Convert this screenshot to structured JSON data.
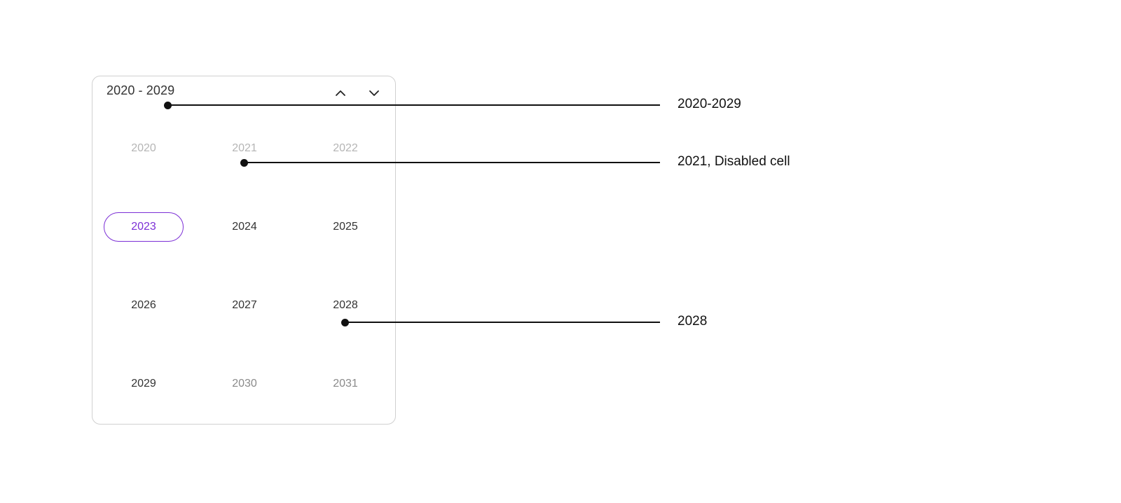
{
  "picker": {
    "range_label": "2020 - 2029",
    "years": [
      {
        "label": "2020",
        "state": "disabled"
      },
      {
        "label": "2021",
        "state": "disabled"
      },
      {
        "label": "2022",
        "state": "disabled"
      },
      {
        "label": "2023",
        "state": "selected"
      },
      {
        "label": "2024",
        "state": "normal"
      },
      {
        "label": "2025",
        "state": "normal"
      },
      {
        "label": "2026",
        "state": "normal"
      },
      {
        "label": "2027",
        "state": "normal"
      },
      {
        "label": "2028",
        "state": "normal"
      },
      {
        "label": "2029",
        "state": "normal"
      },
      {
        "label": "2030",
        "state": "muted"
      },
      {
        "label": "2031",
        "state": "muted"
      }
    ],
    "accent_color": "#7c2fd6",
    "prev_icon": "chevron-up-icon",
    "next_icon": "chevron-down-icon"
  },
  "callouts": [
    {
      "label": "2020-2029"
    },
    {
      "label": "2021, Disabled cell"
    },
    {
      "label": "2028"
    }
  ]
}
